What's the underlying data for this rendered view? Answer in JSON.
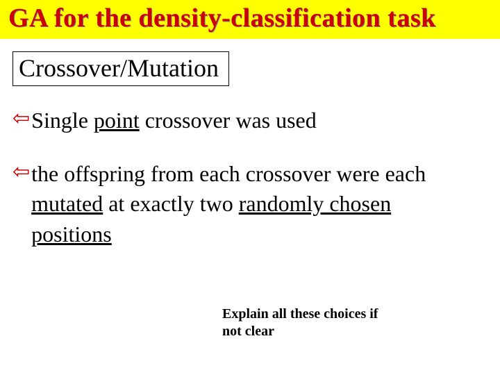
{
  "slide": {
    "title": "GA for the density-classification task",
    "subtitle": "Crossover/Mutation",
    "bullet1_pre": "Single ",
    "bullet1_ul": "point",
    "bullet1_post": " crossover was used",
    "bullet2_pre": "the offspring from each crossover were each ",
    "bullet2_ul1": "mutated",
    "bullet2_mid": " at exactly two ",
    "bullet2_ul2": "randomly chosen positions",
    "note_line1": "Explain all these choices if",
    "note_line2": "not clear"
  },
  "style": {
    "title_color": "#cc0000",
    "title_band_bg": "#ffff00",
    "arrow_color": "#cc0000",
    "background": "#ffffff",
    "title_fontsize": 38,
    "subtitle_fontsize": 36,
    "body_fontsize": 32,
    "note_fontsize": 20
  }
}
